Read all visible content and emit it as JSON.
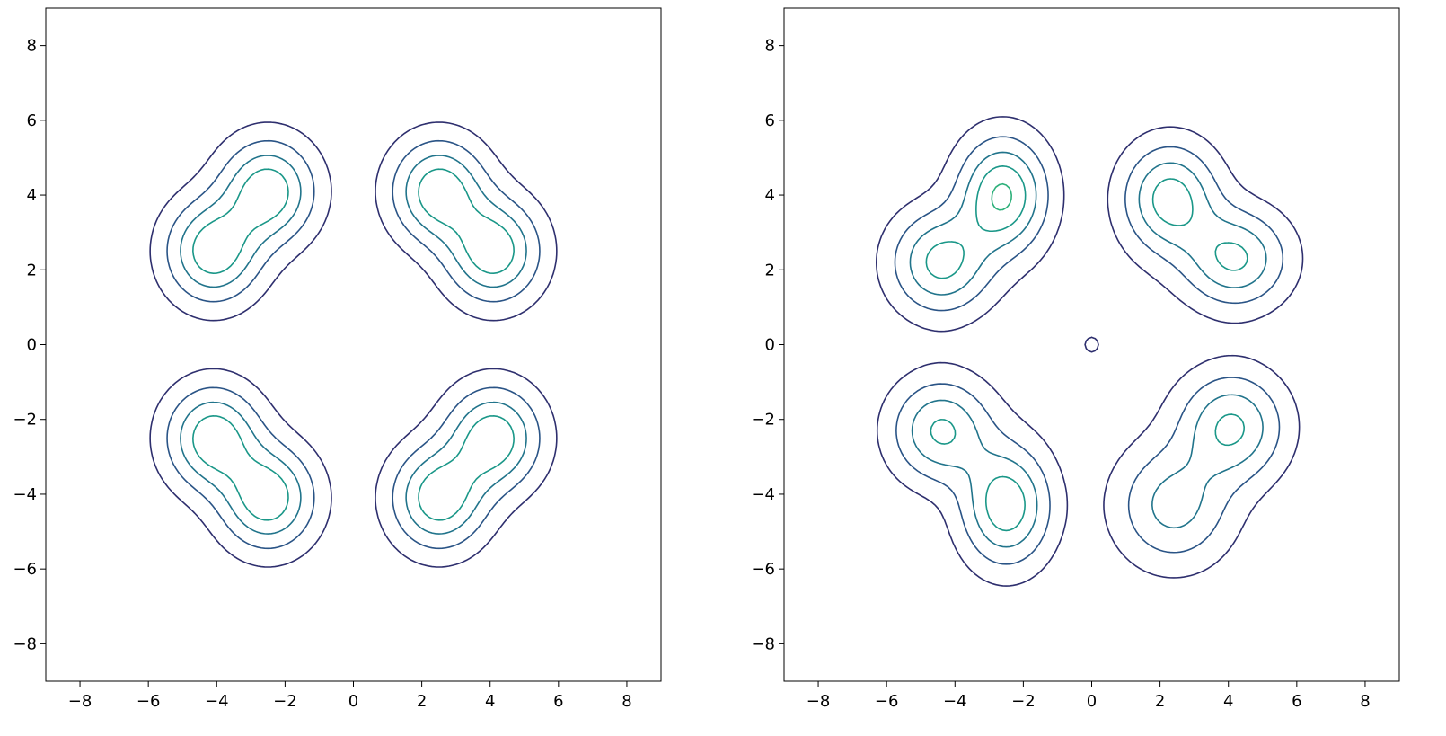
{
  "chart_data": [
    {
      "type": "contour",
      "title": "",
      "xlabel": "",
      "ylabel": "",
      "xlim": [
        -9,
        9
      ],
      "ylim": [
        -9,
        9
      ],
      "xticks": [
        -8,
        -6,
        -4,
        -2,
        0,
        2,
        4,
        6,
        8
      ],
      "yticks": [
        -8,
        -6,
        -4,
        -2,
        0,
        2,
        4,
        6,
        8
      ],
      "xtick_labels": [
        "−8",
        "−6",
        "−4",
        "−2",
        "0",
        "2",
        "4",
        "6",
        "8"
      ],
      "ytick_labels": [
        "−8",
        "−6",
        "−4",
        "−2",
        "0",
        "2",
        "4",
        "6",
        "8"
      ],
      "grid": false,
      "colormap": "viridis",
      "level_colors": [
        "#2e2f6e",
        "#2a5486",
        "#21748b",
        "#1a9788",
        "#2db07a",
        "#5dc963",
        "#9bd641"
      ],
      "levels": [
        0.003,
        0.008,
        0.014,
        0.02,
        0.026,
        0.032,
        0.038
      ],
      "components": [
        {
          "mean": [
            -4.1,
            2.5
          ],
          "sigma": [
            0.9,
            0.9
          ],
          "weight": 1
        },
        {
          "mean": [
            -2.5,
            4.1
          ],
          "sigma": [
            0.9,
            0.9
          ],
          "weight": 1
        },
        {
          "mean": [
            2.5,
            4.1
          ],
          "sigma": [
            0.9,
            0.9
          ],
          "weight": 1
        },
        {
          "mean": [
            4.1,
            2.5
          ],
          "sigma": [
            0.9,
            0.9
          ],
          "weight": 1
        },
        {
          "mean": [
            -4.1,
            -2.5
          ],
          "sigma": [
            0.9,
            0.9
          ],
          "weight": 1
        },
        {
          "mean": [
            -2.5,
            -4.1
          ],
          "sigma": [
            0.9,
            0.9
          ],
          "weight": 1
        },
        {
          "mean": [
            2.5,
            -4.1
          ],
          "sigma": [
            0.9,
            0.9
          ],
          "weight": 1
        },
        {
          "mean": [
            4.1,
            -2.5
          ],
          "sigma": [
            0.9,
            0.9
          ],
          "weight": 1
        }
      ]
    },
    {
      "type": "contour",
      "title": "",
      "xlabel": "",
      "ylabel": "",
      "xlim": [
        -9,
        9
      ],
      "ylim": [
        -9,
        9
      ],
      "xticks": [
        -8,
        -6,
        -4,
        -2,
        0,
        2,
        4,
        6,
        8
      ],
      "yticks": [
        -8,
        -6,
        -4,
        -2,
        0,
        2,
        4,
        6,
        8
      ],
      "xtick_labels": [
        "−8",
        "−6",
        "−4",
        "−2",
        "0",
        "2",
        "4",
        "6",
        "8"
      ],
      "ytick_labels": [
        "−8",
        "−6",
        "−4",
        "−2",
        "0",
        "2",
        "4",
        "6",
        "8"
      ],
      "grid": false,
      "colormap": "viridis",
      "level_colors": [
        "#2e2f6e",
        "#2a5486",
        "#21748b",
        "#1a9788",
        "#2db07a",
        "#5dc963",
        "#9bd641"
      ],
      "levels": [
        0.003,
        0.008,
        0.014,
        0.02,
        0.026,
        0.032,
        0.038
      ],
      "components": [
        {
          "mean": [
            -4.4,
            2.2
          ],
          "sigma": [
            0.95,
            0.9
          ],
          "weight": 0.95
        },
        {
          "mean": [
            -2.6,
            4.0
          ],
          "sigma": [
            0.85,
            1.0
          ],
          "weight": 1.15
        },
        {
          "mean": [
            2.3,
            3.9
          ],
          "sigma": [
            0.9,
            0.95
          ],
          "weight": 1.0
        },
        {
          "mean": [
            4.2,
            2.3
          ],
          "sigma": [
            1.0,
            0.85
          ],
          "weight": 0.9
        },
        {
          "mean": [
            -4.4,
            -2.3
          ],
          "sigma": [
            0.95,
            0.9
          ],
          "weight": 0.9
        },
        {
          "mean": [
            -2.5,
            -4.3
          ],
          "sigma": [
            0.85,
            1.05
          ],
          "weight": 1.1
        },
        {
          "mean": [
            2.4,
            -4.3
          ],
          "sigma": [
            1.1,
            1.05
          ],
          "weight": 0.95
        },
        {
          "mean": [
            4.1,
            -2.2
          ],
          "sigma": [
            1.0,
            0.95
          ],
          "weight": 1.0
        },
        {
          "mean": [
            0.0,
            0.0
          ],
          "sigma": [
            1.2,
            1.2
          ],
          "weight": 0.22
        }
      ]
    }
  ]
}
